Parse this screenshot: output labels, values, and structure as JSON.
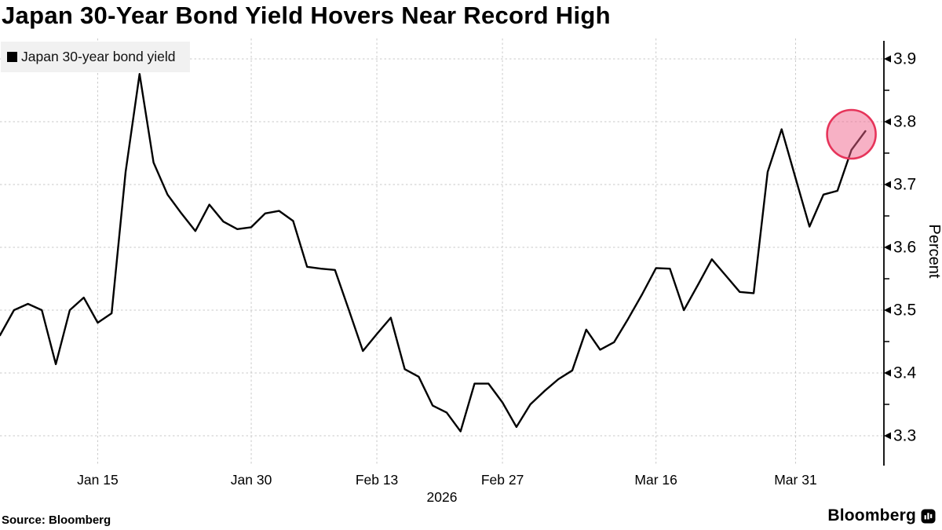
{
  "header": {
    "title": "Japan 30-Year Bond Yield Hovers Near Record High"
  },
  "legend": {
    "label": "Japan 30-year bond yield",
    "swatch_color": "#000000"
  },
  "footer": {
    "source": "Source: Bloomberg",
    "brand": "Bloomberg"
  },
  "chart_data": {
    "type": "line",
    "title": "Japan 30-Year Bond Yield Hovers Near Record High",
    "ylabel": "Percent",
    "year_label": "2026",
    "axis_side": "right",
    "grid": "dashed",
    "grid_color": "#c9c9c9",
    "line_color": "#000000",
    "ylim": [
      3.25,
      3.95
    ],
    "y_ticks": [
      3.9,
      3.8,
      3.7,
      3.6,
      3.5,
      3.4,
      3.3
    ],
    "y_minor_ticks": [
      3.85,
      3.75,
      3.65,
      3.55,
      3.45,
      3.35
    ],
    "x_tick_labels": [
      {
        "label": "Jan 15",
        "index": 7
      },
      {
        "label": "Jan 30",
        "index": 18
      },
      {
        "label": "Feb 13",
        "index": 27
      },
      {
        "label": "Feb 27",
        "index": 36
      },
      {
        "label": "Mar 16",
        "index": 47
      },
      {
        "label": "Mar 31",
        "index": 57
      }
    ],
    "series": [
      {
        "name": "Japan 30-year bond yield",
        "color": "#000000",
        "dates": [
          "Jan 5",
          "Jan 6",
          "Jan 7",
          "Jan 8",
          "Jan 9",
          "Jan 13",
          "Jan 14",
          "Jan 15",
          "Jan 16",
          "Jan 19",
          "Jan 20",
          "Jan 21",
          "Jan 22",
          "Jan 23",
          "Jan 26",
          "Jan 27",
          "Jan 28",
          "Jan 29",
          "Jan 30",
          "Feb 2",
          "Feb 3",
          "Feb 4",
          "Feb 5",
          "Feb 6",
          "Feb 9",
          "Feb 10",
          "Feb 12",
          "Feb 13",
          "Feb 16",
          "Feb 17",
          "Feb 18",
          "Feb 19",
          "Feb 20",
          "Feb 24",
          "Feb 25",
          "Feb 26",
          "Feb 27",
          "Mar 2",
          "Mar 3",
          "Mar 4",
          "Mar 5",
          "Mar 6",
          "Mar 9",
          "Mar 10",
          "Mar 11",
          "Mar 12",
          "Mar 13",
          "Mar 16",
          "Mar 17",
          "Mar 18",
          "Mar 19",
          "Mar 23",
          "Mar 24",
          "Mar 25",
          "Mar 26",
          "Mar 27",
          "Mar 30",
          "Mar 31",
          "Apr 1",
          "Apr 2",
          "Apr 3",
          "Apr 6",
          "Apr 7"
        ],
        "values": [
          3.46,
          3.5,
          3.51,
          3.5,
          3.414,
          3.5,
          3.52,
          3.48,
          3.495,
          3.72,
          3.876,
          3.735,
          3.684,
          3.654,
          3.626,
          3.668,
          3.641,
          3.629,
          3.632,
          3.654,
          3.658,
          3.642,
          3.569,
          3.566,
          3.564,
          3.5,
          3.435,
          3.462,
          3.488,
          3.406,
          3.394,
          3.348,
          3.337,
          3.307,
          3.383,
          3.383,
          3.353,
          3.314,
          3.35,
          3.371,
          3.39,
          3.404,
          3.469,
          3.437,
          3.449,
          3.486,
          3.525,
          3.567,
          3.566,
          3.5,
          3.54,
          3.581,
          3.555,
          3.529,
          3.527,
          3.72,
          3.788,
          3.71,
          3.633,
          3.684,
          3.69,
          3.755,
          3.785
        ]
      }
    ],
    "highlight": {
      "shape": "circle",
      "center_index": 61,
      "center_value": 3.78,
      "radius_px": 31,
      "fill": "#f0648c",
      "fill_opacity": 0.5,
      "stroke": "#e6345a"
    }
  }
}
